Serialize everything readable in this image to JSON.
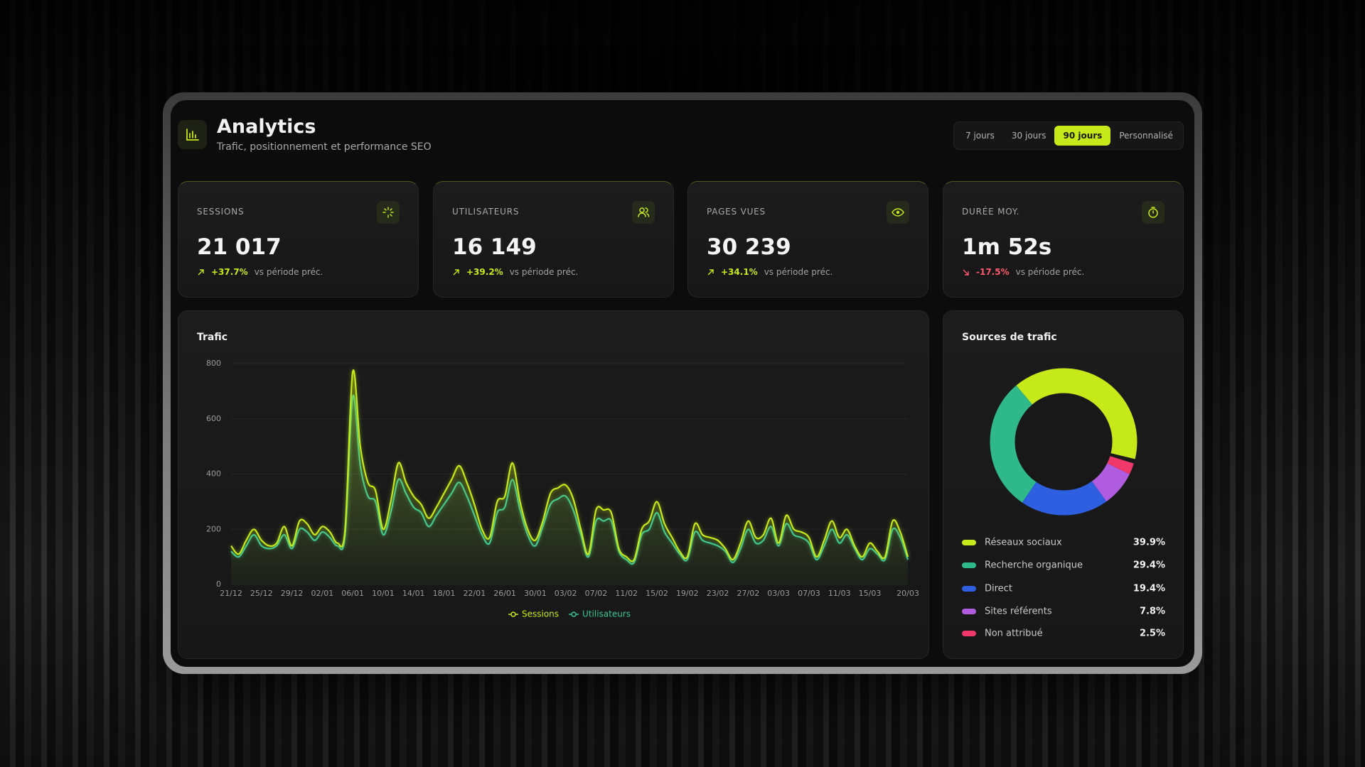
{
  "header": {
    "title": "Analytics",
    "subtitle": "Trafic, positionnement et performance SEO"
  },
  "range_buttons": [
    "7 jours",
    "30 jours",
    "90 jours",
    "Personnalisé"
  ],
  "active_range_index": 2,
  "kpis": [
    {
      "label": "SESSIONS",
      "value": "21 017",
      "delta": "+37.7%",
      "comparison": "vs période préc.",
      "trend": "up"
    },
    {
      "label": "UTILISATEURS",
      "value": "16 149",
      "delta": "+39.2%",
      "comparison": "vs période préc.",
      "trend": "up"
    },
    {
      "label": "PAGES VUES",
      "value": "30 239",
      "delta": "+34.1%",
      "comparison": "vs période préc.",
      "trend": "up"
    },
    {
      "label": "DURÉE MOY.",
      "value": "1m 52s",
      "delta": "-17.5%",
      "comparison": "vs période préc.",
      "trend": "down"
    }
  ],
  "chart_data": [
    {
      "type": "line",
      "title": "Trafic",
      "categories": [
        "21/12",
        null,
        null,
        null,
        "25/12",
        null,
        null,
        null,
        "29/12",
        null,
        null,
        null,
        "02/01",
        null,
        null,
        null,
        "06/01",
        null,
        null,
        null,
        "10/01",
        null,
        null,
        null,
        "14/01",
        null,
        null,
        null,
        "18/01",
        null,
        null,
        null,
        "22/01",
        null,
        null,
        null,
        "26/01",
        null,
        null,
        null,
        "30/01",
        null,
        null,
        null,
        "03/02",
        null,
        null,
        null,
        "07/02",
        null,
        null,
        null,
        "11/02",
        null,
        null,
        null,
        "15/02",
        null,
        null,
        null,
        "19/02",
        null,
        null,
        null,
        "23/02",
        null,
        null,
        null,
        "27/02",
        null,
        null,
        null,
        "03/03",
        null,
        null,
        null,
        "07/03",
        null,
        null,
        null,
        "11/03",
        null,
        null,
        null,
        "15/03",
        null,
        null,
        null,
        null,
        "20/03"
      ],
      "series": [
        {
          "name": "Sessions",
          "color": "#c6e91a",
          "values": [
            140,
            110,
            160,
            200,
            160,
            140,
            150,
            210,
            140,
            230,
            220,
            180,
            210,
            190,
            150,
            200,
            770,
            500,
            370,
            340,
            200,
            300,
            440,
            370,
            320,
            290,
            240,
            280,
            330,
            380,
            430,
            370,
            290,
            200,
            170,
            300,
            320,
            440,
            300,
            200,
            160,
            230,
            330,
            350,
            360,
            310,
            200,
            110,
            270,
            270,
            260,
            130,
            100,
            90,
            200,
            230,
            300,
            220,
            170,
            120,
            100,
            220,
            180,
            170,
            160,
            130,
            90,
            150,
            230,
            170,
            180,
            240,
            150,
            250,
            200,
            190,
            170,
            100,
            160,
            230,
            170,
            200,
            140,
            100,
            150,
            120,
            100,
            230,
            190,
            100
          ]
        },
        {
          "name": "Utilisateurs",
          "color": "#35c49a",
          "values": [
            120,
            100,
            140,
            180,
            140,
            130,
            140,
            180,
            130,
            200,
            190,
            160,
            190,
            170,
            140,
            180,
            680,
            430,
            320,
            300,
            180,
            260,
            380,
            330,
            280,
            260,
            210,
            250,
            290,
            330,
            370,
            320,
            250,
            180,
            150,
            260,
            280,
            380,
            270,
            180,
            140,
            210,
            290,
            310,
            320,
            270,
            180,
            100,
            230,
            230,
            230,
            120,
            90,
            80,
            180,
            200,
            260,
            190,
            150,
            110,
            90,
            190,
            160,
            150,
            140,
            120,
            80,
            130,
            200,
            150,
            160,
            210,
            140,
            220,
            180,
            170,
            150,
            90,
            140,
            200,
            150,
            180,
            130,
            90,
            130,
            110,
            90,
            200,
            170,
            90
          ]
        }
      ],
      "ylim": [
        0,
        800
      ],
      "yticks": [
        0,
        200,
        400,
        600,
        800
      ],
      "grid": true,
      "legend": "bottom"
    },
    {
      "type": "donut",
      "title": "Sources de trafic",
      "categories": [
        "Réseaux sociaux",
        "Recherche organique",
        "Direct",
        "Sites référents",
        "Non attribué"
      ],
      "values": [
        39.9,
        29.4,
        19.4,
        7.8,
        2.5
      ],
      "value_labels": [
        "39.9%",
        "29.4%",
        "19.4%",
        "7.8%",
        "2.5%"
      ],
      "colors": [
        "#c6e91a",
        "#2fb98a",
        "#2d5fe0",
        "#b05ce0",
        "#f0386b"
      ]
    }
  ]
}
